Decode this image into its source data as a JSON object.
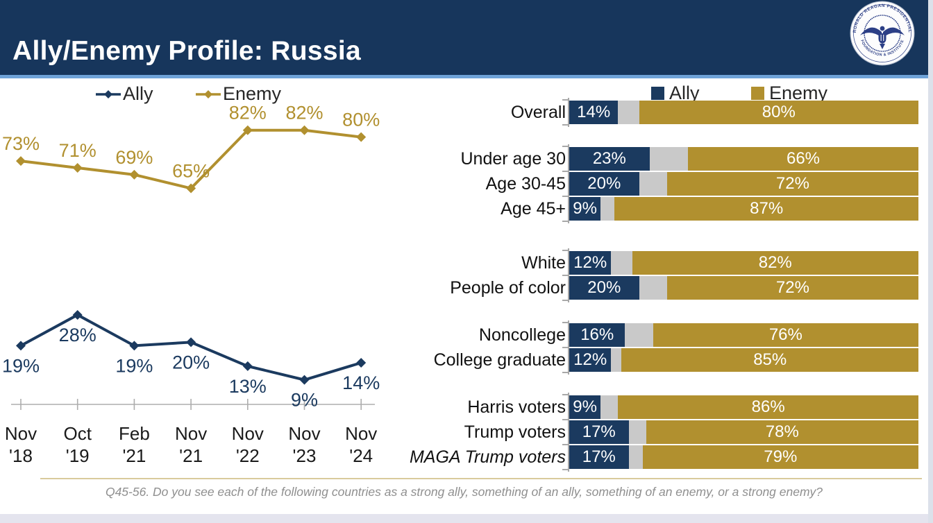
{
  "header": {
    "title": "Ally/Enemy Profile: Russia"
  },
  "logo": {
    "name": "Ronald Reagan Presidential Foundation & Institute seal",
    "ring_text_top": "RONALD REAGAN PRESIDENTIAL",
    "ring_text_bottom": "FOUNDATION & INSTITUTE"
  },
  "footer": {
    "question": "Q45-56. Do you see each of the following countries as a strong ally, something of an ally, something of an enemy, or a strong enemy?"
  },
  "colors": {
    "header_navy": "#17365C",
    "ally_navy": "#1B3A5F",
    "enemy_gold": "#B1902F",
    "neutral_gray": "#C9C9C9",
    "accent_blue": "#6FA3D8",
    "axis_gray": "#ADADAD",
    "footer_rule_tan": "#D9CA9C"
  },
  "chart_data": [
    {
      "type": "line",
      "title": "Russia ally/enemy trend",
      "x": [
        [
          "Nov",
          "'18"
        ],
        [
          "Oct",
          "'19"
        ],
        [
          "Feb",
          "'21"
        ],
        [
          "Nov",
          "'21"
        ],
        [
          "Nov",
          "'22"
        ],
        [
          "Nov",
          "'23"
        ],
        [
          "Nov",
          "'24"
        ]
      ],
      "series": [
        {
          "name": "Ally",
          "color": "#1B3A5F",
          "values": [
            19,
            28,
            19,
            20,
            13,
            9,
            14
          ]
        },
        {
          "name": "Enemy",
          "color": "#B1902F",
          "values": [
            73,
            71,
            69,
            65,
            82,
            82,
            80
          ]
        }
      ],
      "ylim": [
        0,
        100
      ],
      "grid": false,
      "legend_position": "top",
      "data_labels": "percent"
    },
    {
      "type": "bar",
      "orientation": "horizontal-stacked",
      "title": "Russia ally/enemy by demographic",
      "x_max": 100,
      "series": [
        {
          "name": "Ally",
          "color": "#1B3A5F"
        },
        {
          "name": "Enemy",
          "color": "#B1902F"
        }
      ],
      "middle_segment_color": "#C9C9C9",
      "legend_position": "top",
      "groups": [
        {
          "rows": [
            {
              "label": "Overall",
              "ally": 14,
              "enemy": 80
            }
          ]
        },
        {
          "rows": [
            {
              "label": "Under age 30",
              "ally": 23,
              "enemy": 66
            },
            {
              "label": "Age 30-45",
              "ally": 20,
              "enemy": 72
            },
            {
              "label": "Age 45+",
              "ally": 9,
              "enemy": 87
            }
          ]
        },
        {
          "rows": [
            {
              "label": "White",
              "ally": 12,
              "enemy": 82
            },
            {
              "label": "People of color",
              "ally": 20,
              "enemy": 72
            }
          ]
        },
        {
          "rows": [
            {
              "label": "Noncollege",
              "ally": 16,
              "enemy": 76
            },
            {
              "label": "College graduate",
              "ally": 12,
              "enemy": 85
            }
          ]
        },
        {
          "rows": [
            {
              "label": "Harris voters",
              "ally": 9,
              "enemy": 86
            },
            {
              "label": "Trump voters",
              "ally": 17,
              "enemy": 78
            },
            {
              "label": "MAGA Trump voters",
              "ally": 17,
              "enemy": 79,
              "italic": true
            }
          ]
        }
      ]
    }
  ]
}
